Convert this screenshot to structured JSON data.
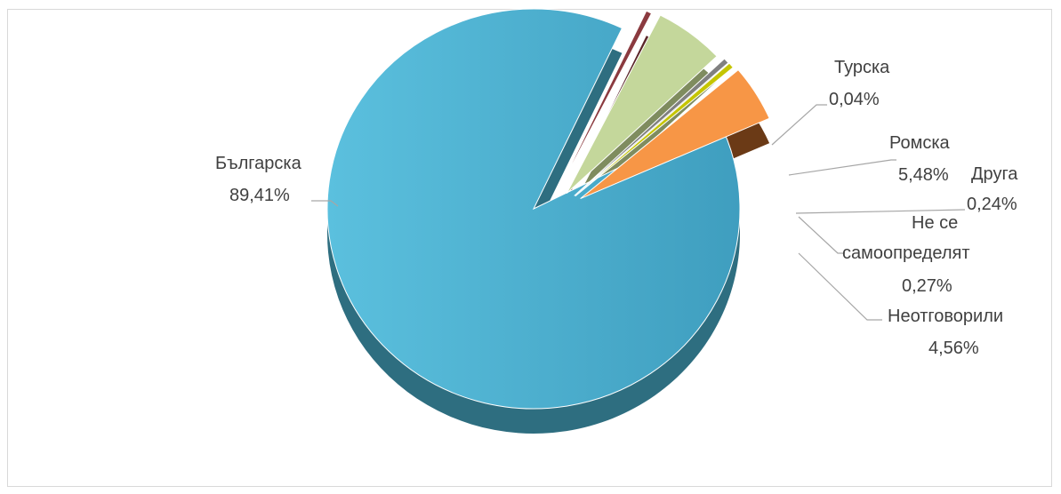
{
  "chart_data": {
    "type": "pie",
    "style": "3D exploded pie",
    "title": "",
    "legend": "none",
    "series": [
      {
        "values": [
          {
            "label": "Българска",
            "percent_label": "89,41%",
            "value": 89.41,
            "color": "#4BACC6"
          },
          {
            "label": "Турска",
            "percent_label": "0,04%",
            "value": 0.04,
            "color": "#8B3A3F"
          },
          {
            "label": "Ромска",
            "percent_label": "5,48%",
            "value": 5.48,
            "color": "#C4D79B"
          },
          {
            "label": "Друга",
            "percent_label": "0,24%",
            "value": 0.24,
            "color": "#808080"
          },
          {
            "label": "Не се самоопределят",
            "percent_label": "0,27%",
            "value": 0.27,
            "color": "#C5C500"
          },
          {
            "label": "Неотговорили",
            "percent_label": "4,56%",
            "value": 4.56,
            "color": "#F79646"
          }
        ]
      }
    ]
  }
}
